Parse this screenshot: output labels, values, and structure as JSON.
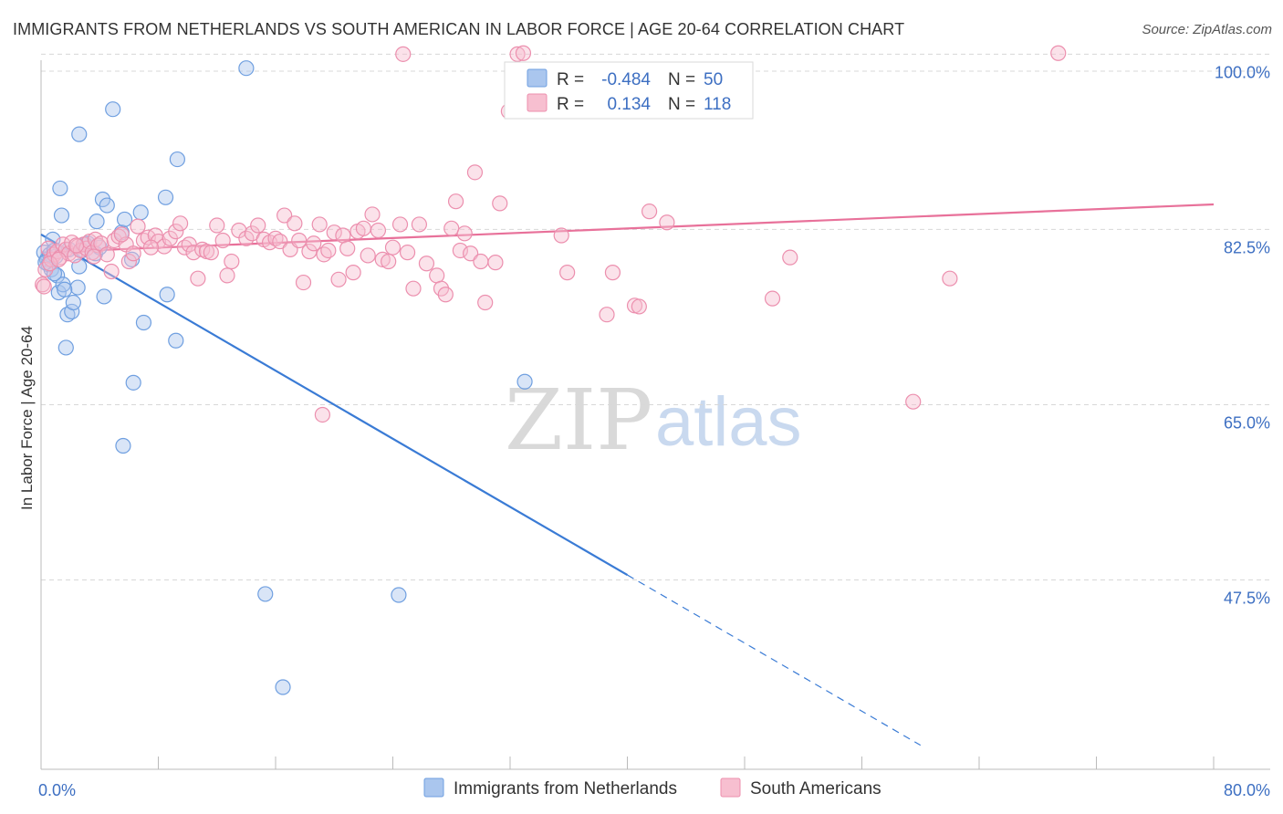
{
  "title": "IMMIGRANTS FROM NETHERLANDS VS SOUTH AMERICAN IN LABOR FORCE | AGE 20-64 CORRELATION CHART",
  "source": "Source: ZipAtlas.com",
  "watermark": {
    "zip": "ZIP",
    "atlas": "atlas"
  },
  "legend_top": {
    "rows": [
      {
        "r_label": "R =",
        "r_value": "-0.484",
        "n_label": "N =",
        "n_value": "50"
      },
      {
        "r_label": "R =",
        "r_value": "0.134",
        "n_label": "N =",
        "n_value": "118"
      }
    ]
  },
  "legend_bottom": [
    "Immigrants from Netherlands",
    "South Americans"
  ],
  "colors": {
    "blue_fill": "#aac6ee",
    "blue_stroke": "#6f9fe0",
    "blue_line": "#3a7bd5",
    "pink_fill": "#f7bfd0",
    "pink_stroke": "#ec8fae",
    "pink_line": "#e8719a",
    "grid": "#d8d8d8",
    "tick_text": "#3d6fc2"
  },
  "chart_data": {
    "type": "scatter",
    "title": "IMMIGRANTS FROM NETHERLANDS VS SOUTH AMERICAN IN LABOR FORCE | AGE 20-64 CORRELATION CHART",
    "xlabel": "",
    "ylabel": "In Labor Force | Age 20-64",
    "xlim": [
      0,
      80
    ],
    "ylim": [
      33,
      100
    ],
    "x_tick_labels": [
      "0.0%",
      "80.0%"
    ],
    "y_ticks": [
      47.5,
      65.0,
      82.5,
      100.0
    ],
    "y_tick_labels": [
      "47.5%",
      "65.0%",
      "82.5%",
      "100.0%"
    ],
    "grid": "horizontal dashed",
    "legend_position": "top-center",
    "series": [
      {
        "name": "Immigrants from Netherlands",
        "color": "blue",
        "R": -0.484,
        "N": 50,
        "trend": {
          "x0": 0,
          "y0": 82.0,
          "x1": 40,
          "y1": 48.0,
          "dashed_to_x": 60
        },
        "points": [
          [
            0.2,
            80.2
          ],
          [
            0.4,
            79.5
          ],
          [
            0.5,
            79.0
          ],
          [
            0.6,
            80.0
          ],
          [
            0.7,
            78.5
          ],
          [
            0.8,
            81.5
          ],
          [
            0.9,
            80.4
          ],
          [
            1.0,
            79.8
          ],
          [
            1.1,
            77.9
          ],
          [
            1.2,
            76.2
          ],
          [
            1.3,
            86.6
          ],
          [
            1.4,
            83.9
          ],
          [
            1.5,
            77.0
          ],
          [
            1.7,
            70.7
          ],
          [
            1.8,
            74.0
          ],
          [
            2.1,
            74.3
          ],
          [
            2.2,
            75.2
          ],
          [
            2.5,
            76.7
          ],
          [
            2.6,
            78.8
          ],
          [
            2.8,
            80.4
          ],
          [
            3.0,
            81.0
          ],
          [
            3.2,
            81.1
          ],
          [
            3.7,
            80.1
          ],
          [
            3.8,
            83.3
          ],
          [
            4.2,
            85.5
          ],
          [
            4.3,
            75.8
          ],
          [
            4.5,
            84.9
          ],
          [
            4.0,
            80.7
          ],
          [
            5.5,
            82.2
          ],
          [
            5.7,
            83.5
          ],
          [
            6.2,
            79.5
          ],
          [
            6.8,
            84.2
          ],
          [
            6.3,
            67.2
          ],
          [
            5.6,
            60.9
          ],
          [
            7.0,
            73.2
          ],
          [
            8.5,
            85.7
          ],
          [
            8.6,
            76.0
          ],
          [
            9.2,
            71.4
          ],
          [
            9.3,
            89.5
          ],
          [
            14.0,
            98.6
          ],
          [
            2.6,
            92.0
          ],
          [
            4.9,
            94.5
          ],
          [
            15.3,
            46.1
          ],
          [
            16.5,
            36.8
          ],
          [
            24.4,
            46.0
          ],
          [
            33.0,
            67.3
          ],
          [
            0.3,
            79.2
          ],
          [
            1.6,
            76.5
          ],
          [
            0.9,
            78.1
          ],
          [
            1.9,
            80.5
          ]
        ]
      },
      {
        "name": "South Americans",
        "color": "pink",
        "R": 0.134,
        "N": 118,
        "trend": {
          "x0": 0,
          "y0": 80.2,
          "x1": 80,
          "y1": 85.0
        },
        "points": [
          [
            0.1,
            77.0
          ],
          [
            0.3,
            78.5
          ],
          [
            0.5,
            80.6
          ],
          [
            0.7,
            79.5
          ],
          [
            0.9,
            80.0
          ],
          [
            1.1,
            80.3
          ],
          [
            1.3,
            79.7
          ],
          [
            1.5,
            81.0
          ],
          [
            1.7,
            80.5
          ],
          [
            1.9,
            80.1
          ],
          [
            2.1,
            81.2
          ],
          [
            2.3,
            79.9
          ],
          [
            2.5,
            80.8
          ],
          [
            2.7,
            80.4
          ],
          [
            2.9,
            81.0
          ],
          [
            3.1,
            80.6
          ],
          [
            3.3,
            81.3
          ],
          [
            3.5,
            80.2
          ],
          [
            3.7,
            81.5
          ],
          [
            3.9,
            80.9
          ],
          [
            4.1,
            81.1
          ],
          [
            4.5,
            80.0
          ],
          [
            4.8,
            78.3
          ],
          [
            5.0,
            81.4
          ],
          [
            5.3,
            81.8
          ],
          [
            5.8,
            81.0
          ],
          [
            6.0,
            79.3
          ],
          [
            6.3,
            80.1
          ],
          [
            6.6,
            82.8
          ],
          [
            7.0,
            81.4
          ],
          [
            7.3,
            81.7
          ],
          [
            7.8,
            81.9
          ],
          [
            8.0,
            81.3
          ],
          [
            8.4,
            80.8
          ],
          [
            8.8,
            81.6
          ],
          [
            9.2,
            82.3
          ],
          [
            9.5,
            83.1
          ],
          [
            9.8,
            80.7
          ],
          [
            10.1,
            81.0
          ],
          [
            10.4,
            80.2
          ],
          [
            10.7,
            77.6
          ],
          [
            11.0,
            80.5
          ],
          [
            11.3,
            80.3
          ],
          [
            11.6,
            80.2
          ],
          [
            12.0,
            82.9
          ],
          [
            12.4,
            81.4
          ],
          [
            12.7,
            77.9
          ],
          [
            13.0,
            79.3
          ],
          [
            13.5,
            82.4
          ],
          [
            14.0,
            81.6
          ],
          [
            14.4,
            82.1
          ],
          [
            14.8,
            82.9
          ],
          [
            15.2,
            81.5
          ],
          [
            15.6,
            81.2
          ],
          [
            16.0,
            81.6
          ],
          [
            16.3,
            81.3
          ],
          [
            16.6,
            83.9
          ],
          [
            17.0,
            80.5
          ],
          [
            17.3,
            83.1
          ],
          [
            17.6,
            81.4
          ],
          [
            17.9,
            77.2
          ],
          [
            18.3,
            80.3
          ],
          [
            18.6,
            81.1
          ],
          [
            19.0,
            83.0
          ],
          [
            19.3,
            80.0
          ],
          [
            19.6,
            80.4
          ],
          [
            20.0,
            82.2
          ],
          [
            20.3,
            77.5
          ],
          [
            20.6,
            81.9
          ],
          [
            20.9,
            80.6
          ],
          [
            21.3,
            78.2
          ],
          [
            21.6,
            82.3
          ],
          [
            22.0,
            82.6
          ],
          [
            22.3,
            79.9
          ],
          [
            22.6,
            84.0
          ],
          [
            23.0,
            82.4
          ],
          [
            23.3,
            79.5
          ],
          [
            23.7,
            79.3
          ],
          [
            24.0,
            80.7
          ],
          [
            24.5,
            83.0
          ],
          [
            25.0,
            80.2
          ],
          [
            25.4,
            76.6
          ],
          [
            25.8,
            83.0
          ],
          [
            26.3,
            79.1
          ],
          [
            27.0,
            77.9
          ],
          [
            27.3,
            76.6
          ],
          [
            27.6,
            76.0
          ],
          [
            28.0,
            82.6
          ],
          [
            28.3,
            85.3
          ],
          [
            28.6,
            80.4
          ],
          [
            28.9,
            82.1
          ],
          [
            29.3,
            80.1
          ],
          [
            29.6,
            88.2
          ],
          [
            30.0,
            79.3
          ],
          [
            30.3,
            75.2
          ],
          [
            31.0,
            79.2
          ],
          [
            31.3,
            85.1
          ],
          [
            31.9,
            94.3
          ],
          [
            32.5,
            100.0
          ],
          [
            32.9,
            100.1
          ],
          [
            35.5,
            81.9
          ],
          [
            35.9,
            78.2
          ],
          [
            38.6,
            74.0
          ],
          [
            39.0,
            78.2
          ],
          [
            40.5,
            74.9
          ],
          [
            40.8,
            74.8
          ],
          [
            41.5,
            84.3
          ],
          [
            42.7,
            83.2
          ],
          [
            49.9,
            75.6
          ],
          [
            51.1,
            79.7
          ],
          [
            59.5,
            65.3
          ],
          [
            62.0,
            77.6
          ],
          [
            69.4,
            100.1
          ],
          [
            24.7,
            100.0
          ],
          [
            19.2,
            64.0
          ],
          [
            0.2,
            76.8
          ],
          [
            0.6,
            79.1
          ],
          [
            1.2,
            79.5
          ],
          [
            2.4,
            80.9
          ],
          [
            3.6,
            79.8
          ],
          [
            5.5,
            82.0
          ],
          [
            7.5,
            80.7
          ]
        ]
      }
    ]
  }
}
